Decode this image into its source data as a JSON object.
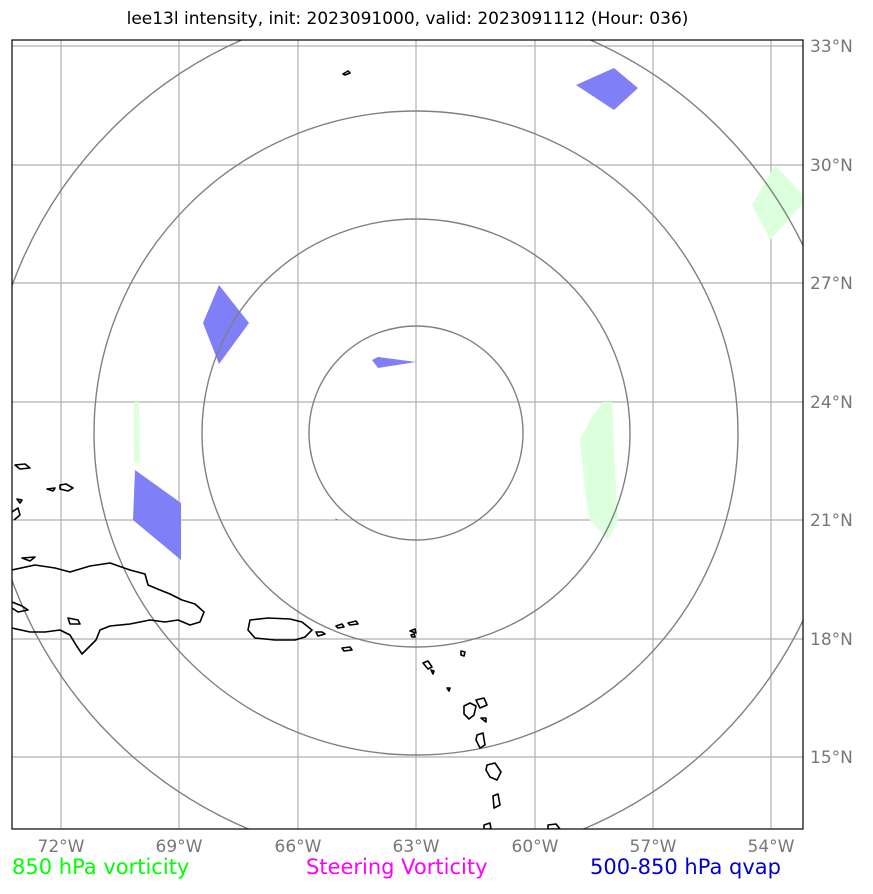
{
  "title": "lee13l intensity, init: 2023091000, valid: 2023091112 (Hour: 036)",
  "footer": {
    "left": "850 hPa vorticity",
    "center": "Steering Vorticity",
    "right": "500-850 hPa qvap"
  },
  "colors": {
    "left_label": "#00ff00",
    "center_label": "#ff00ff",
    "right_label": "#0000cc",
    "qvap_fill": "#7f7ff8",
    "vorticity_fill": "#dcffdc",
    "range_rings": "#808080",
    "gridlines": "#b0b0b0",
    "coastline": "#000000"
  },
  "map": {
    "lon_ticks": [
      "72°W",
      "69°W",
      "66°W",
      "63°W",
      "60°W",
      "57°W",
      "54°W"
    ],
    "lat_ticks": [
      "33°N",
      "30°N",
      "27°N",
      "24°N",
      "21°N",
      "18°N",
      "15°N"
    ],
    "extent": {
      "lon_min": -73.2,
      "lon_max": -53.2,
      "lat_min": 13.2,
      "lat_max": 33.2
    },
    "storm_center": {
      "lon": -63.0,
      "lat": 23.0
    },
    "range_ring_count": 4,
    "gridlines": true,
    "layers": [
      "850 hPa vorticity",
      "Steering Vorticity",
      "500-850 hPa qvap"
    ]
  }
}
